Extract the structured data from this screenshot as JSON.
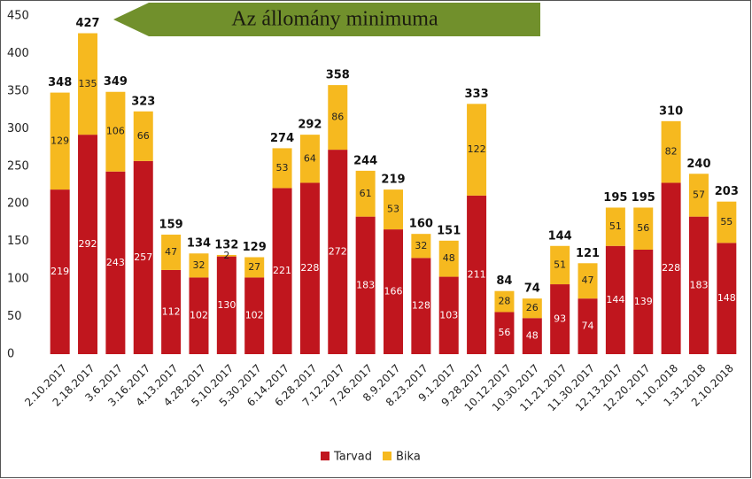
{
  "chart_data": {
    "type": "bar",
    "stacked": true,
    "title": "Az állomány minimuma",
    "categories": [
      "2.10.2017",
      "2.18.2017",
      "3.6.2017",
      "3.16.2017",
      "4.13.2017",
      "4.28.2017",
      "5.10.2017",
      "5.30.2017",
      "6.14.2017",
      "6.28.2017",
      "7.12.2017",
      "7.26.2017",
      "8.9.2017",
      "8.23.2017",
      "9.1.2017",
      "9.28.2017",
      "10.12.2017",
      "10.30.2017",
      "11.21.2017",
      "11.30.2017",
      "12.13.2017",
      "12.20.2017",
      "1.10.2018",
      "1.31.2018",
      "2.10.2018"
    ],
    "series": [
      {
        "name": "Tarvad",
        "color": "#c0161e",
        "label_color": "#ffffff",
        "values": [
          219,
          292,
          243,
          257,
          112,
          102,
          130,
          102,
          221,
          228,
          272,
          183,
          166,
          128,
          103,
          211,
          56,
          48,
          93,
          74,
          144,
          139,
          228,
          183,
          148
        ]
      },
      {
        "name": "Bika",
        "color": "#f6b91f",
        "label_color": "#222222",
        "values": [
          129,
          135,
          106,
          66,
          47,
          32,
          2,
          27,
          53,
          64,
          86,
          61,
          53,
          32,
          48,
          122,
          28,
          26,
          51,
          47,
          51,
          56,
          82,
          57,
          55
        ]
      }
    ],
    "totals": [
      348,
      427,
      349,
      323,
      159,
      134,
      132,
      129,
      274,
      292,
      358,
      244,
      219,
      160,
      151,
      333,
      84,
      74,
      144,
      121,
      195,
      195,
      310,
      240,
      203
    ],
    "ylim": [
      0,
      450
    ],
    "yticks": [
      0,
      50,
      100,
      150,
      200,
      250,
      300,
      350,
      400,
      450
    ],
    "grid": false,
    "legend": "bottom"
  }
}
